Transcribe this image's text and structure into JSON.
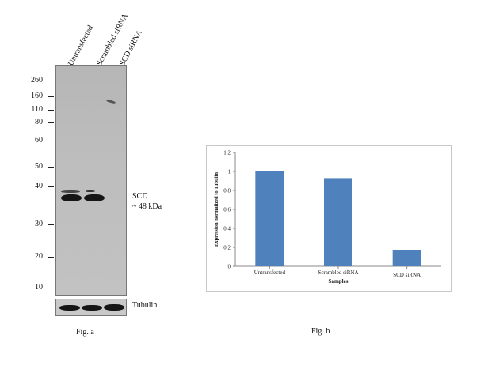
{
  "figure_a": {
    "lanes": [
      "Untransfected",
      "Scrambled siRNA",
      "SCD siRNA"
    ],
    "markers": [
      "260",
      "160",
      "110",
      "80",
      "60",
      "50",
      "40",
      "30",
      "20",
      "10"
    ],
    "band_label": "SCD",
    "band_size": "~ 48 kDa",
    "loading_control": "Tubulin",
    "caption": "Fig. a"
  },
  "figure_b": {
    "caption": "Fig. b"
  },
  "chart_data": {
    "type": "bar",
    "categories": [
      "Untransfected",
      "Scrambled siRNA",
      "SCD siRNA"
    ],
    "values": [
      1.0,
      0.93,
      0.17
    ],
    "title": "",
    "xlabel": "Samples",
    "ylabel": "Expression normalized to Tubulin",
    "ylim": [
      0,
      1.2
    ],
    "yticks": [
      "0",
      "0.2",
      "0.4",
      "0.6",
      "0.8",
      "1",
      "1.2"
    ],
    "bar_color": "#4f81bd",
    "grid": false,
    "legend": "none"
  }
}
